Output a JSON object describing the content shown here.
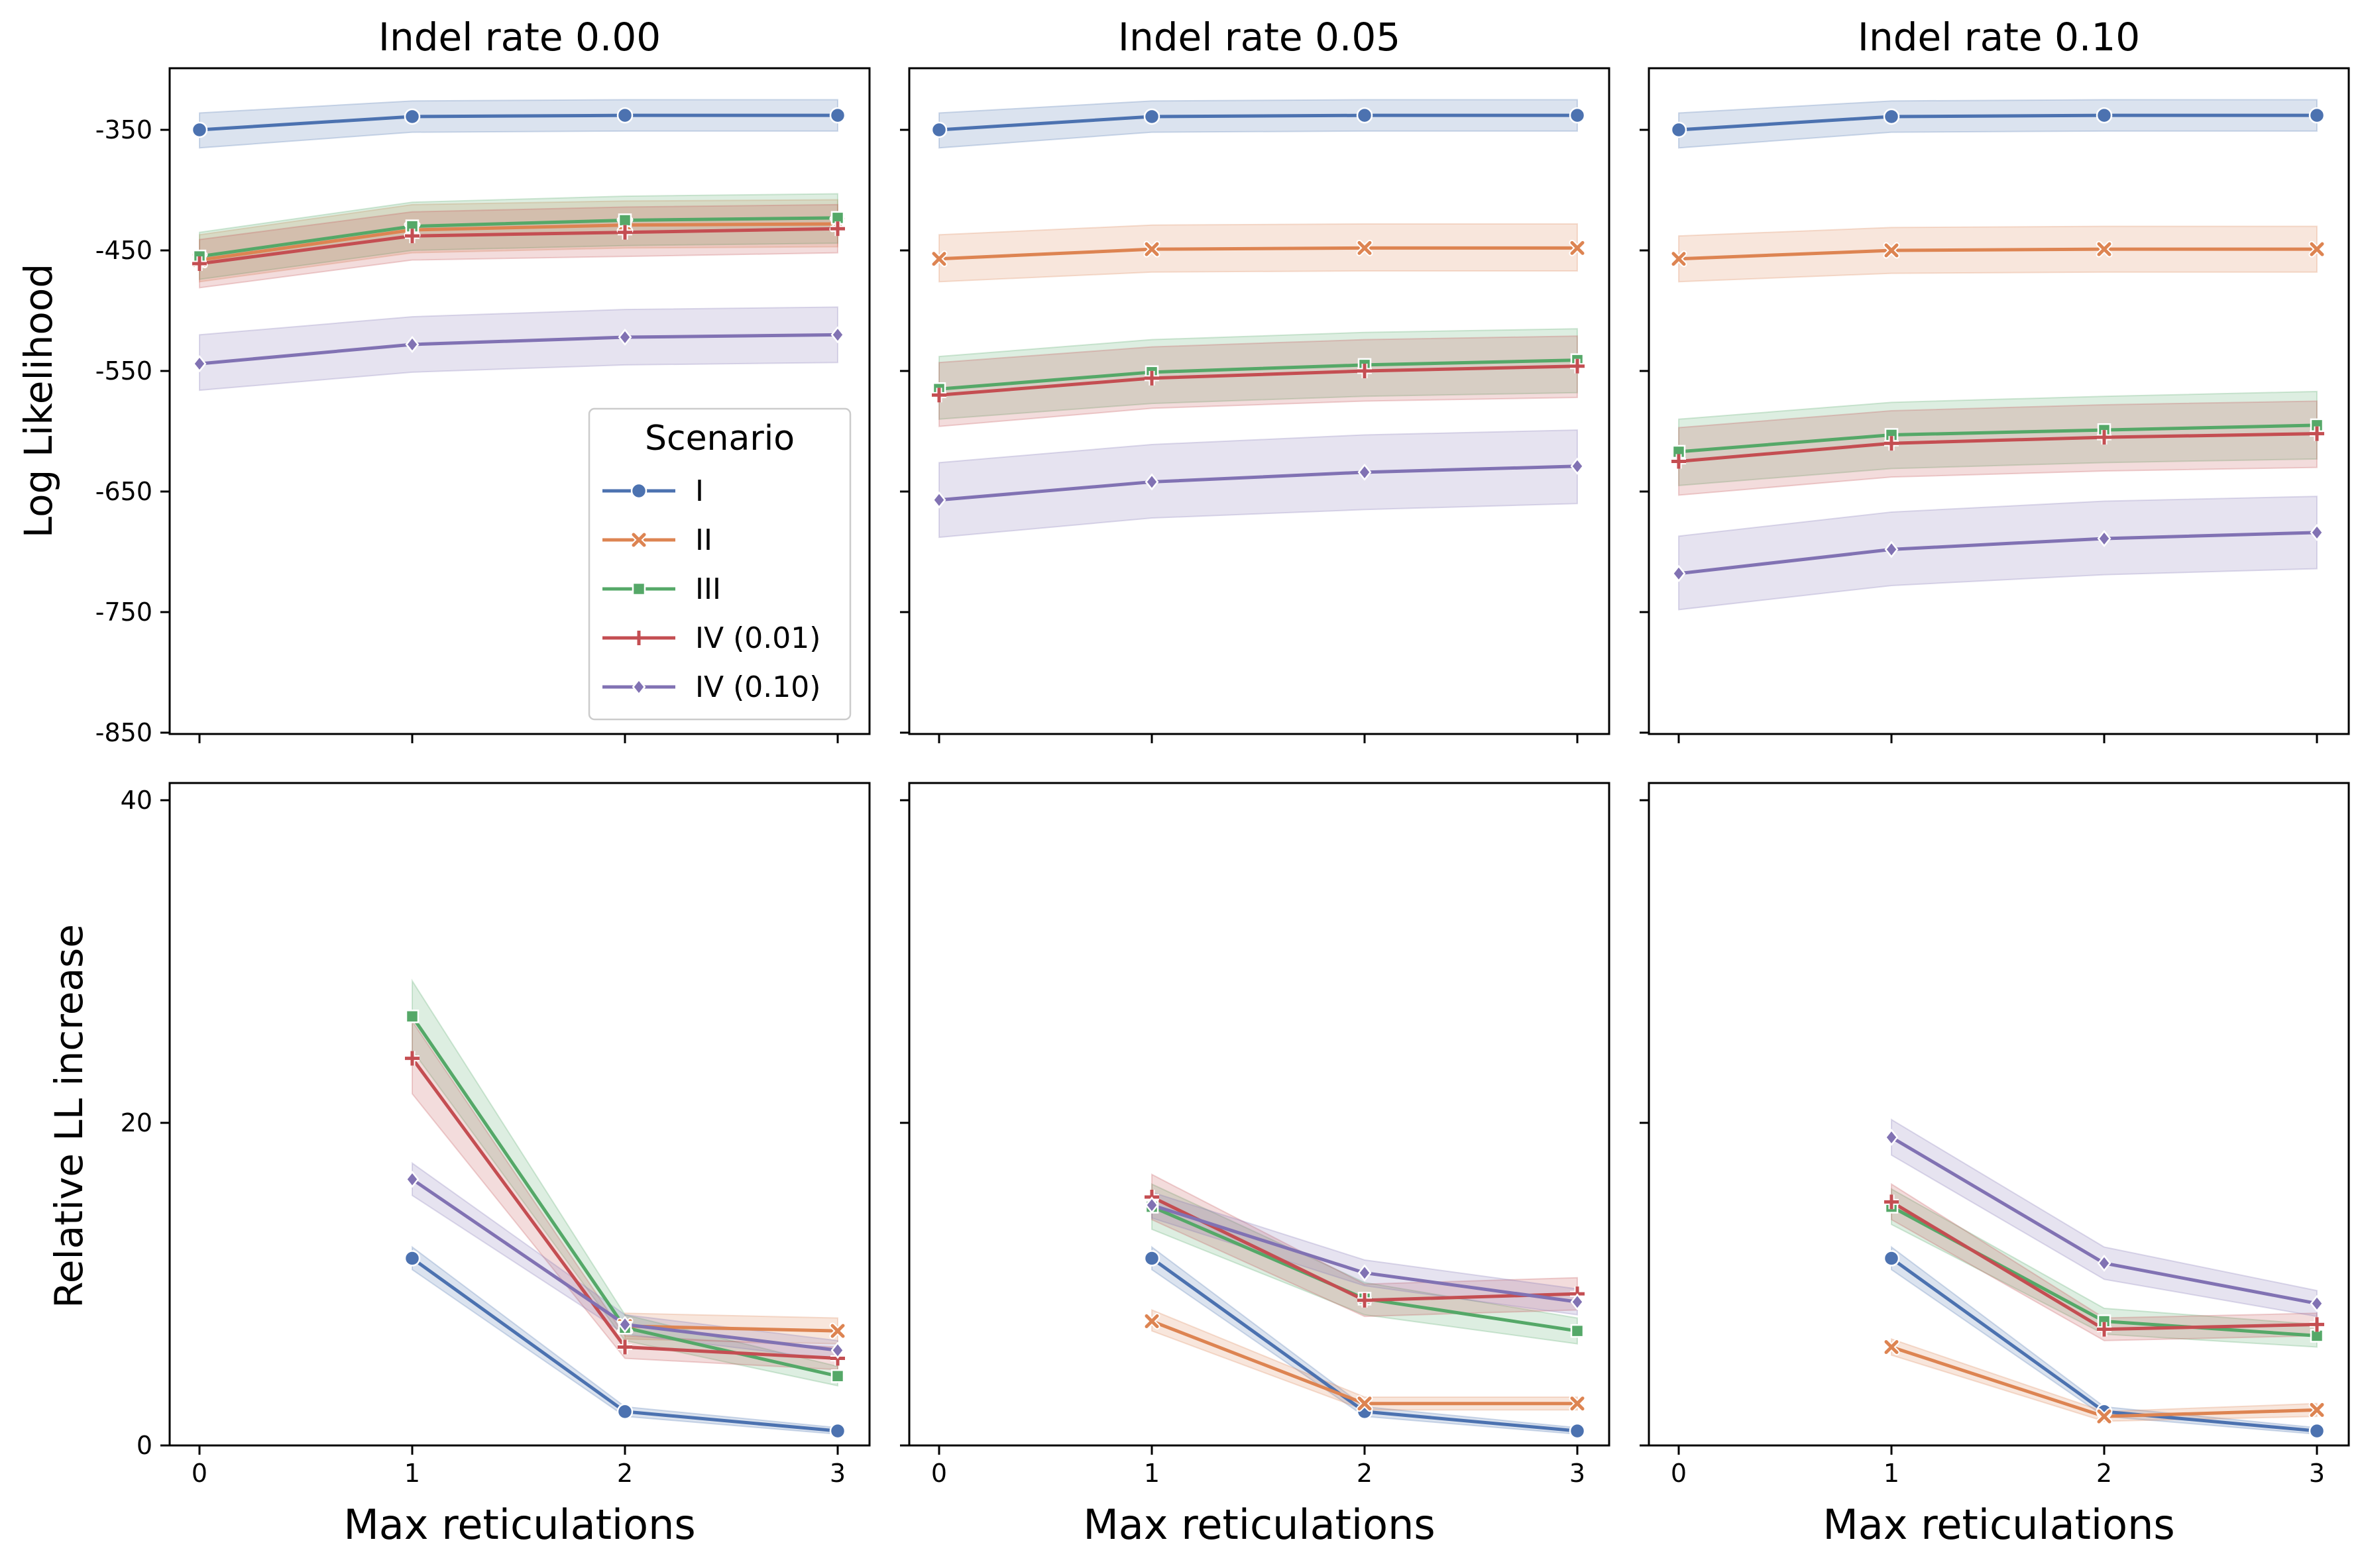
{
  "figure": {
    "colors": {
      "I": "#4c72b0",
      "II": "#dd8452",
      "III": "#55a868",
      "IV (0.01)": "#c44e52",
      "IV (0.10)": "#8172b3"
    },
    "markers": {
      "I": "circle",
      "II": "x",
      "III": "square",
      "IV (0.01)": "plus",
      "IV (0.10)": "diamond"
    }
  },
  "legend": {
    "title": "Scenario",
    "entries": [
      "I",
      "II",
      "III",
      "IV (0.01)",
      "IV (0.10)"
    ],
    "placement": "lower-right of top-left panel"
  },
  "shared": {
    "xlabel": "Max reticulations",
    "x_ticks": [
      "0",
      "1",
      "2",
      "3"
    ],
    "top_ylabel": "Log Likelihood",
    "top_y_ticks": [
      "-350",
      "-450",
      "-550",
      "-650",
      "-750",
      "-850"
    ],
    "top_ylim": [
      -850,
      -310
    ],
    "bottom_ylabel": "Relative LL increase",
    "bottom_y_ticks": [
      "40",
      "20",
      "0"
    ],
    "bottom_ylim": [
      0,
      41
    ]
  },
  "chart_data": [
    {
      "type": "line",
      "title": "Indel rate 0.00",
      "row": "top",
      "column": 0,
      "x": [
        0,
        1,
        2,
        3
      ],
      "series": [
        {
          "name": "I",
          "values": [
            -350,
            -339,
            -338,
            -338
          ],
          "lower": [
            -365,
            -352,
            -351,
            -351
          ],
          "upper": [
            -336,
            -326,
            -325,
            -325
          ]
        },
        {
          "name": "II",
          "values": [
            -458,
            -433,
            -429,
            -428
          ],
          "lower": [
            -476,
            -452,
            -448,
            -447
          ],
          "upper": [
            -437,
            -412,
            -409,
            -408
          ]
        },
        {
          "name": "III",
          "values": [
            -455,
            -430,
            -425,
            -423
          ],
          "lower": [
            -474,
            -450,
            -446,
            -444
          ],
          "upper": [
            -435,
            -410,
            -405,
            -403
          ]
        },
        {
          "name": "IV (0.01)",
          "values": [
            -461,
            -438,
            -435,
            -432
          ],
          "lower": [
            -481,
            -458,
            -455,
            -452
          ],
          "upper": [
            -441,
            -418,
            -414,
            -412
          ]
        },
        {
          "name": "IV (0.10)",
          "values": [
            -544,
            -528,
            -522,
            -520
          ],
          "lower": [
            -566,
            -551,
            -545,
            -543
          ],
          "upper": [
            -520,
            -505,
            -499,
            -497
          ]
        }
      ]
    },
    {
      "type": "line",
      "title": "Indel rate 0.05",
      "row": "top",
      "column": 1,
      "x": [
        0,
        1,
        2,
        3
      ],
      "series": [
        {
          "name": "I",
          "values": [
            -350,
            -339,
            -338,
            -338
          ],
          "lower": [
            -365,
            -352,
            -351,
            -351
          ],
          "upper": [
            -336,
            -326,
            -325,
            -325
          ]
        },
        {
          "name": "II",
          "values": [
            -457,
            -449,
            -448,
            -448
          ],
          "lower": [
            -476,
            -468,
            -467,
            -467
          ],
          "upper": [
            -437,
            -429,
            -428,
            -428
          ]
        },
        {
          "name": "III",
          "values": [
            -565,
            -551,
            -545,
            -541
          ],
          "lower": [
            -590,
            -577,
            -571,
            -568
          ],
          "upper": [
            -538,
            -524,
            -518,
            -515
          ]
        },
        {
          "name": "IV (0.01)",
          "values": [
            -570,
            -556,
            -550,
            -546
          ],
          "lower": [
            -596,
            -581,
            -575,
            -572
          ],
          "upper": [
            -543,
            -530,
            -524,
            -521
          ]
        },
        {
          "name": "IV (0.10)",
          "values": [
            -657,
            -642,
            -634,
            -629
          ],
          "lower": [
            -688,
            -672,
            -665,
            -660
          ],
          "upper": [
            -626,
            -611,
            -603,
            -599
          ]
        }
      ]
    },
    {
      "type": "line",
      "title": "Indel rate 0.10",
      "row": "top",
      "column": 2,
      "x": [
        0,
        1,
        2,
        3
      ],
      "series": [
        {
          "name": "I",
          "values": [
            -350,
            -339,
            -338,
            -338
          ],
          "lower": [
            -365,
            -352,
            -351,
            -351
          ],
          "upper": [
            -336,
            -326,
            -325,
            -325
          ]
        },
        {
          "name": "II",
          "values": [
            -457,
            -450,
            -449,
            -449
          ],
          "lower": [
            -476,
            -469,
            -468,
            -468
          ],
          "upper": [
            -438,
            -431,
            -430,
            -430
          ]
        },
        {
          "name": "III",
          "values": [
            -617,
            -603,
            -599,
            -595
          ],
          "lower": [
            -645,
            -631,
            -626,
            -623
          ],
          "upper": [
            -590,
            -576,
            -571,
            -567
          ]
        },
        {
          "name": "IV (0.01)",
          "values": [
            -625,
            -610,
            -605,
            -602
          ],
          "lower": [
            -653,
            -638,
            -633,
            -630
          ],
          "upper": [
            -597,
            -583,
            -578,
            -575
          ]
        },
        {
          "name": "IV (0.10)",
          "values": [
            -718,
            -698,
            -689,
            -684
          ],
          "lower": [
            -748,
            -728,
            -719,
            -714
          ],
          "upper": [
            -687,
            -667,
            -658,
            -654
          ]
        }
      ]
    },
    {
      "type": "line",
      "title": "",
      "row": "bottom",
      "column": 0,
      "x": [
        1,
        2,
        3
      ],
      "series_x_start": {
        "I": 1,
        "II": 2,
        "III": 1,
        "IV (0.01)": 1,
        "IV (0.10)": 1
      },
      "series": [
        {
          "name": "I",
          "x": [
            1,
            2,
            3
          ],
          "values": [
            11.6,
            2.1,
            0.9
          ],
          "lower": [
            10.9,
            1.8,
            0.7
          ],
          "upper": [
            12.3,
            2.4,
            1.1
          ]
        },
        {
          "name": "II",
          "x": [
            2,
            3
          ],
          "values": [
            7.4,
            7.1
          ],
          "lower": [
            6.6,
            6.3
          ],
          "upper": [
            8.2,
            7.9
          ]
        },
        {
          "name": "III",
          "x": [
            1,
            2,
            3
          ],
          "values": [
            26.6,
            7.3,
            4.3
          ],
          "lower": [
            24.5,
            6.5,
            3.7
          ],
          "upper": [
            28.8,
            8.1,
            4.9
          ]
        },
        {
          "name": "IV (0.01)",
          "x": [
            1,
            2,
            3
          ],
          "values": [
            24.0,
            6.1,
            5.4
          ],
          "lower": [
            21.8,
            5.4,
            4.7
          ],
          "upper": [
            26.3,
            6.8,
            6.1
          ]
        },
        {
          "name": "IV (0.10)",
          "x": [
            1,
            2,
            3
          ],
          "values": [
            16.5,
            7.5,
            5.9
          ],
          "lower": [
            15.5,
            6.9,
            5.3
          ],
          "upper": [
            17.5,
            8.1,
            6.5
          ]
        }
      ]
    },
    {
      "type": "line",
      "title": "",
      "row": "bottom",
      "column": 1,
      "x": [
        1,
        2,
        3
      ],
      "series": [
        {
          "name": "I",
          "x": [
            1,
            2,
            3
          ],
          "values": [
            11.6,
            2.1,
            0.9
          ],
          "lower": [
            10.9,
            1.8,
            0.7
          ],
          "upper": [
            12.3,
            2.4,
            1.1
          ]
        },
        {
          "name": "II",
          "x": [
            1,
            2,
            3
          ],
          "values": [
            7.7,
            2.6,
            2.6
          ],
          "lower": [
            7.1,
            2.2,
            2.2
          ],
          "upper": [
            8.4,
            3.0,
            3.0
          ]
        },
        {
          "name": "III",
          "x": [
            1,
            2,
            3
          ],
          "values": [
            14.8,
            9.1,
            7.1
          ],
          "lower": [
            13.4,
            8.1,
            6.3
          ],
          "upper": [
            16.2,
            10.1,
            7.9
          ]
        },
        {
          "name": "IV (0.01)",
          "x": [
            1,
            2,
            3
          ],
          "values": [
            15.4,
            9.0,
            9.4
          ],
          "lower": [
            14.0,
            8.0,
            8.4
          ],
          "upper": [
            16.8,
            10.0,
            10.4
          ]
        },
        {
          "name": "IV (0.10)",
          "x": [
            1,
            2,
            3
          ],
          "values": [
            14.9,
            10.7,
            8.9
          ],
          "lower": [
            14.1,
            9.9,
            8.1
          ],
          "upper": [
            15.7,
            11.5,
            9.7
          ]
        }
      ]
    },
    {
      "type": "line",
      "title": "",
      "row": "bottom",
      "column": 2,
      "x": [
        1,
        2,
        3
      ],
      "series": [
        {
          "name": "I",
          "x": [
            1,
            2,
            3
          ],
          "values": [
            11.6,
            2.1,
            0.9
          ],
          "lower": [
            10.9,
            1.8,
            0.7
          ],
          "upper": [
            12.3,
            2.4,
            1.1
          ]
        },
        {
          "name": "II",
          "x": [
            1,
            2,
            3
          ],
          "values": [
            6.1,
            1.8,
            2.2
          ],
          "lower": [
            5.6,
            1.5,
            1.8
          ],
          "upper": [
            6.6,
            2.1,
            2.6
          ]
        },
        {
          "name": "III",
          "x": [
            1,
            2,
            3
          ],
          "values": [
            14.8,
            7.7,
            6.8
          ],
          "lower": [
            13.7,
            6.9,
            6.1
          ],
          "upper": [
            15.9,
            8.5,
            7.5
          ]
        },
        {
          "name": "IV (0.01)",
          "x": [
            1,
            2,
            3
          ],
          "values": [
            15.1,
            7.2,
            7.5
          ],
          "lower": [
            14.0,
            6.5,
            6.8
          ],
          "upper": [
            16.2,
            7.9,
            8.2
          ]
        },
        {
          "name": "IV (0.10)",
          "x": [
            1,
            2,
            3
          ],
          "values": [
            19.1,
            11.3,
            8.8
          ],
          "lower": [
            18.0,
            10.3,
            8.0
          ],
          "upper": [
            20.2,
            12.3,
            9.6
          ]
        }
      ]
    }
  ]
}
